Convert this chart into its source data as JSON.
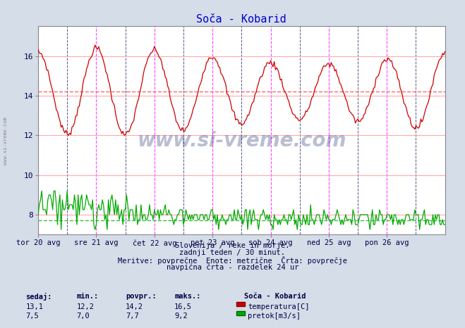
{
  "title": "Soča - Kobarid",
  "title_color": "#0000cc",
  "bg_color": "#d4dde8",
  "plot_bg_color": "#ffffff",
  "fig_size": [
    6.59,
    4.66
  ],
  "dpi": 100,
  "xlim": [
    0,
    336
  ],
  "ylim": [
    7.0,
    17.5
  ],
  "temp_avg": 14.2,
  "temp_color": "#cc0000",
  "flow_avg": 7.7,
  "flow_color": "#00aa00",
  "grid_color_h": "#ffaaaa",
  "vline_color_magenta": "#ff44ff",
  "vline_color_black": "#555588",
  "xlabel_color": "#000044",
  "text_color": "#000044",
  "xtick_labels": [
    "tor 20 avg",
    "sre 21 avg",
    "čet 22 avg",
    "pet 23 avg",
    "sob 24 avg",
    "ned 25 avg",
    "pon 26 avg"
  ],
  "xtick_positions": [
    0,
    48,
    96,
    144,
    192,
    240,
    288
  ],
  "vlines_magenta": [
    0,
    48,
    96,
    144,
    192,
    240,
    288,
    336
  ],
  "vlines_black": [
    24,
    72,
    120,
    168,
    216,
    264,
    312
  ],
  "yticks": [
    8,
    10,
    12,
    14,
    16
  ],
  "footer_line1": "Slovenija / reke in morje.",
  "footer_line2": "zadnji teden / 30 minut.",
  "footer_line3": "Meritve: povprečne  Enote: metrične  Črta: povprečje",
  "footer_line4": "navpična črta - razdelek 24 ur",
  "table_headers": [
    "sedaj:",
    "min.:",
    "povpr.:",
    "maks.:"
  ],
  "table_temp": [
    "13,1",
    "12,2",
    "14,2",
    "16,5"
  ],
  "table_flow": [
    "7,5",
    "7,0",
    "7,7",
    "9,2"
  ],
  "legend_title": "Soča - Kobarid",
  "legend_temp": "temperatura[C]",
  "legend_flow": "pretok[m3/s]"
}
